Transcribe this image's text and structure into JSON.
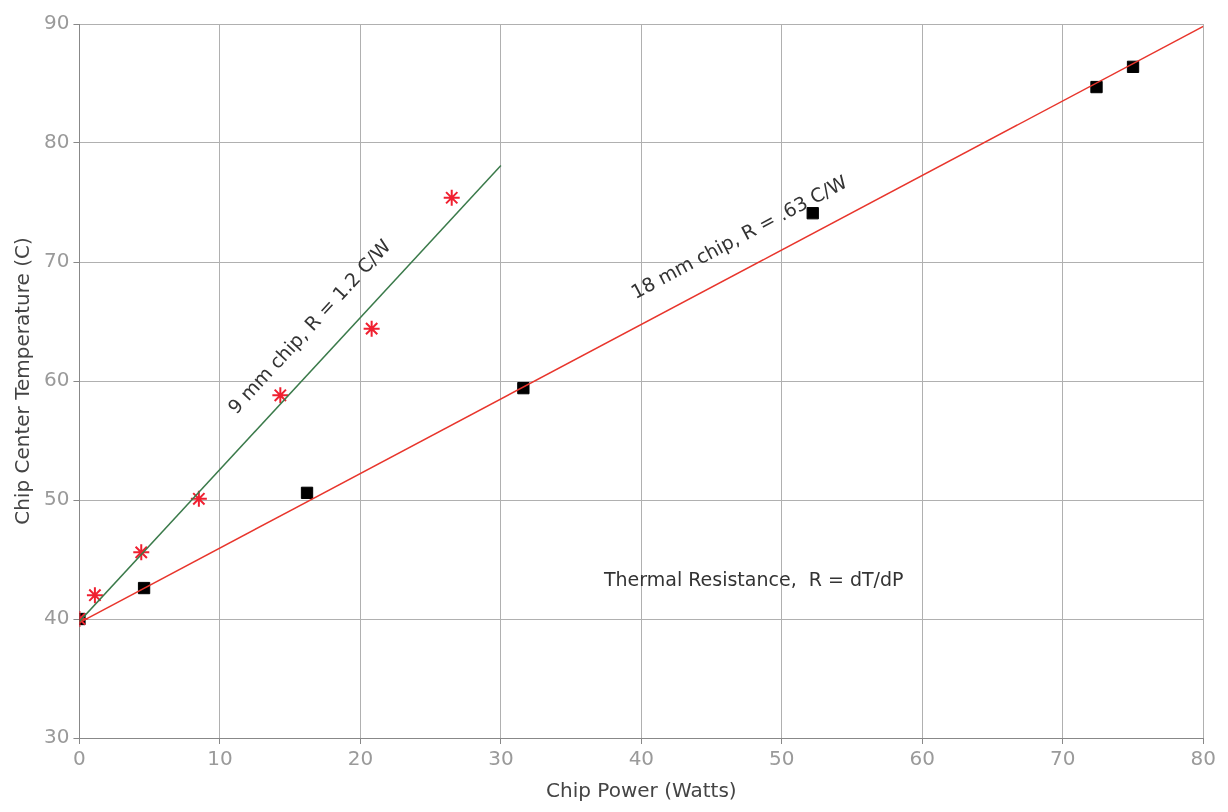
{
  "chart_data": {
    "type": "scatter",
    "xlabel": "Chip Power (Watts)",
    "ylabel": "Chip Center Temperature (C)",
    "xlim": [
      0,
      80
    ],
    "xticks": [
      0,
      10,
      20,
      30,
      40,
      50,
      60,
      70,
      80
    ],
    "ylim": [
      30,
      90
    ],
    "yticks": [
      30,
      40,
      50,
      60,
      70,
      80,
      90
    ],
    "grid": true,
    "series": [
      {
        "type": "line",
        "color": "#3a7a4a",
        "x": [
          0,
          30
        ],
        "values": [
          39.8,
          78.1
        ],
        "marker": "none"
      },
      {
        "type": "line",
        "color": "#e8352c",
        "x": [
          0,
          80
        ],
        "values": [
          39.7,
          89.8
        ],
        "marker": "none"
      },
      {
        "type": "scatter",
        "color": "#f02030",
        "x": [
          0,
          1.1,
          4.4,
          8.5,
          14.3,
          20.8,
          26.5
        ],
        "values": [
          40,
          42,
          45.6,
          50.1,
          58.8,
          64.4,
          75.4
        ],
        "marker": "cross"
      },
      {
        "type": "scatter",
        "color": "#000000",
        "x": [
          0,
          4.6,
          16.2,
          31.6,
          52.2,
          72.4,
          75
        ],
        "values": [
          40,
          42.6,
          50.6,
          59.4,
          74.1,
          84.7,
          86.4
        ],
        "marker": "square"
      }
    ],
    "annotations": [
      "9 mm chip, R = 1.2 C/W",
      "18 mm chip, R = .63 C/W",
      "Thermal Resistance,  R = dT/dP"
    ]
  }
}
